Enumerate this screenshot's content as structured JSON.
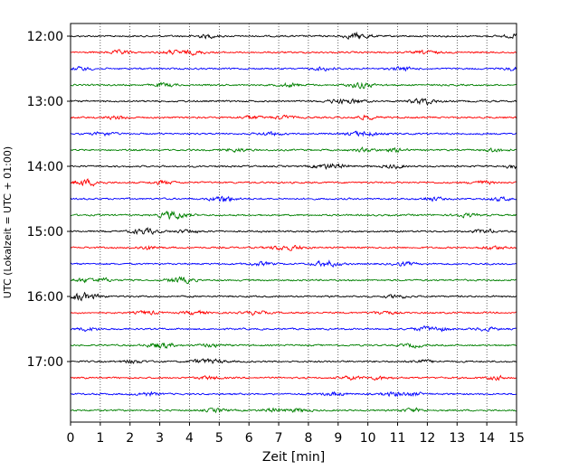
{
  "chart_data": {
    "type": "line",
    "title": "",
    "xlabel": "Zeit  [min]",
    "ylabel": "UTC (Lokalzeit = UTC + 01:00)",
    "xlim": [
      0,
      15
    ],
    "xticks": [
      0,
      1,
      2,
      3,
      4,
      5,
      6,
      7,
      8,
      9,
      10,
      11,
      12,
      13,
      14,
      15
    ],
    "ytick_labels": [
      "12:00",
      "13:00",
      "14:00",
      "15:00",
      "16:00",
      "17:00"
    ],
    "trace_interval_minutes": 15,
    "start_time": "12:00",
    "traces": 24,
    "color_cycle": [
      "#000000",
      "#ff0000",
      "#0000ff",
      "#008000"
    ],
    "grid": "vertical dotted lines at each minute",
    "legend": "none"
  }
}
